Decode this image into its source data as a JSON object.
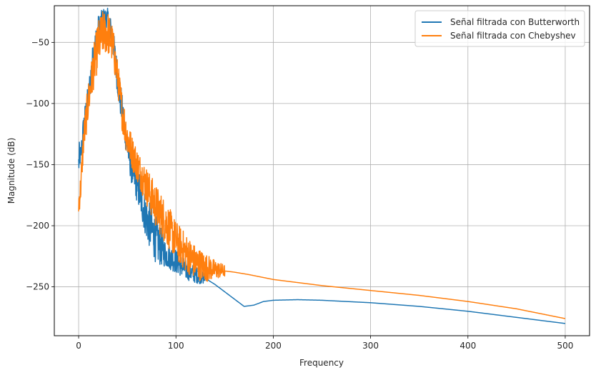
{
  "chart_data": {
    "type": "line",
    "title": "",
    "xlabel": "Frequency",
    "ylabel": "Magnitude (dB)",
    "xlim": [
      -25,
      525
    ],
    "ylim": [
      -290,
      -20
    ],
    "xticks": [
      0,
      100,
      200,
      300,
      400,
      500
    ],
    "yticks": [
      -250,
      -200,
      -150,
      -100,
      -50
    ],
    "xtick_labels": [
      "0",
      "100",
      "200",
      "300",
      "400",
      "500"
    ],
    "ytick_labels": [
      "−250",
      "−200",
      "−150",
      "−100",
      "−50"
    ],
    "grid": true,
    "legend_position": "top-right",
    "series": [
      {
        "name": "Señal filtrada con Butterworth",
        "color": "#1f77b4",
        "noisy_until": 130,
        "x": [
          0,
          1,
          2,
          5,
          10,
          15,
          20,
          25,
          30,
          35,
          40,
          45,
          50,
          55,
          60,
          70,
          80,
          90,
          100,
          110,
          120,
          130,
          140,
          150,
          160,
          170,
          180,
          190,
          200,
          225,
          250,
          300,
          350,
          400,
          450,
          500
        ],
        "y": [
          -150,
          -140,
          -145,
          -120,
          -95,
          -60,
          -40,
          -30,
          -30,
          -45,
          -80,
          -108,
          -135,
          -155,
          -165,
          -195,
          -212,
          -224,
          -229,
          -236,
          -240,
          -243,
          -248,
          -254,
          -260,
          -266,
          -265,
          -262,
          -261,
          -260.5,
          -261,
          -263,
          -266,
          -270,
          -275,
          -280
        ],
        "spread": [
          14,
          10,
          10,
          12,
          12,
          12,
          12,
          8,
          8,
          10,
          14,
          14,
          12,
          14,
          16,
          18,
          20,
          10,
          10,
          8,
          7,
          5,
          0,
          0,
          0,
          0,
          0,
          0,
          0,
          0,
          0,
          0,
          0,
          0,
          0,
          0
        ]
      },
      {
        "name": "Señal filtrada con Chebyshev",
        "color": "#ff7f0e",
        "noisy_until": 150,
        "x": [
          0,
          2,
          5,
          10,
          15,
          20,
          25,
          30,
          35,
          40,
          45,
          50,
          55,
          60,
          70,
          80,
          90,
          100,
          110,
          120,
          130,
          140,
          150,
          160,
          175,
          200,
          250,
          300,
          350,
          400,
          450,
          500
        ],
        "y": [
          -182,
          -170,
          -130,
          -98,
          -72,
          -52,
          -42,
          -42,
          -52,
          -78,
          -108,
          -128,
          -140,
          -150,
          -168,
          -185,
          -198,
          -212,
          -222,
          -230,
          -234,
          -236,
          -237,
          -238,
          -240,
          -244,
          -249,
          -253,
          -257,
          -262,
          -268,
          -276
        ],
        "spread": [
          10,
          12,
          14,
          16,
          18,
          20,
          18,
          18,
          16,
          14,
          16,
          16,
          14,
          14,
          16,
          18,
          18,
          16,
          16,
          14,
          12,
          8,
          5,
          3,
          2,
          0,
          0,
          0,
          0,
          0,
          0,
          0
        ]
      }
    ]
  }
}
